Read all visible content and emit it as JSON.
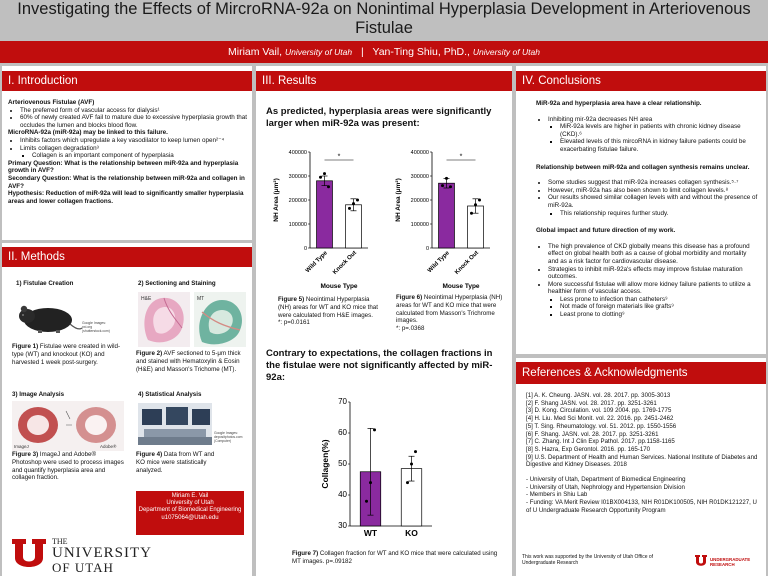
{
  "poster": {
    "title": "Investigating the Effects of MircroRNA-92a on Nonintimal Hyperplasia Development in Arteriovenous Fistulae",
    "author1": "Miriam Vail,",
    "author1_affil": "University of Utah",
    "separator": "|",
    "author2": "Yan-Ting Shiu, PhD.,",
    "author2_affil": "University of Utah"
  },
  "intro": {
    "heading": "I. Introduction",
    "avf_title": "Arteriovenous Fistulae (AVF)",
    "avf_bullets": [
      "The preferred form of vascular access for dialysis¹",
      "60% of newly created AVF fail to mature due to excessive hyperplasia growth that occludes the lumen and blocks blood flow."
    ],
    "mir_title": "MicroRNA-92a (miR-92a) may be linked to this failure.",
    "mir_bullets": [
      "Inhibits factors which upregulate a key vasodilator to keep lumen open²⁻⁴",
      "Limits collagen degradation³"
    ],
    "mir_sub": "Collagen is an important component of hyperplasia",
    "primary": "Primary Question: What is the relationship between miR-92a and hyperplasia growth in AVF?",
    "secondary": "Secondary Question: What is the relationship between miR-92a and collagen in AVF?",
    "hypothesis": "Hypothesis: Reduction of miR-92a will lead to significantly smaller hyperplasia areas and lower collagen fractions."
  },
  "methods": {
    "heading": "II. Methods",
    "sub1": "1) Fistulae Creation",
    "sub2": "2) Sectioning and Staining",
    "sub3": "3) Image Analysis",
    "sub4": "4) Statistical Analysis",
    "fig1_label": "Figure 1)",
    "fig1_text": "Fistulae were created in wild-type (WT) and knockout (KO) and harvested 1 week post-surgery.",
    "fig2_label": "Figure 2)",
    "fig2_text": "AVF sectioned to 5-μm thick and stained with Hematoxylin & Eosin (H&E) and Masson's Trichome (MT).",
    "fig3_label": "Figure 3)",
    "fig3_text": "ImageJ and Adobe® Photoshop were used to process images and quantify hyperplasia area and collagen fraction.",
    "fig4_label": "Figure 4)",
    "fig4_text": "Data from WT and KO mice were statistically analyzed.",
    "tag_he": "H&E",
    "tag_mt": "MT",
    "tag_imagej": "ImageJ",
    "tag_adobe": "Adobe®",
    "credit_mouse": "Google Images: pxi.org (shutterstock.com)",
    "credit_computer": "Google Images: depositphotos.com (Computer)",
    "contact": [
      "Miriam E. Vail",
      "University of Utah",
      "Department of Biomedical Engineering",
      "u1075064@Utah.edu"
    ],
    "logo_the": "THE",
    "logo_university": "UNIVERSITY",
    "logo_of_utah": "OF UTAH"
  },
  "results": {
    "heading": "III. Results",
    "headline1": "As predicted, hyperplasia areas were significantly larger when miR-92a was present:",
    "headline2": "Contrary to expectations, the collagen fractions in the fistulae were not significantly affected by miR-92a:",
    "fig5_label": "Figure 5)",
    "fig5_text": "Neointimal Hyperplasia (NH) areas for WT and KO mice that were calculated from H&E images.",
    "fig5_p": "*: p=0.0161",
    "fig6_label": "Figure 6)",
    "fig6_text": "Neointimal Hyperplasia (NH) areas for WT and KO mice that were calculated from Masson's Trichrome images.",
    "fig6_p": "*: p=.0368",
    "fig7_label": "Figure 7)",
    "fig7_text": "Collagen fraction for WT and KO mice that were calculated using MT images. p=.09182"
  },
  "conclusions": {
    "heading": "IV. Conclusions",
    "h1": "MiR-92a and hyperplasia area have a clear relationship.",
    "b1": "Inhibiting mir-92a decreases NH area",
    "b1_sub": [
      "MiR-92a levels are higher in patients with chronic kidney disease (CKD).⁶",
      "Elevated levels of this mircoRNA in kidney failure patients could be exacerbating fistulae failure."
    ],
    "h2": "Relationship between miR-92a and collagen synthesis remains unclear.",
    "b2": [
      "Some studies suggest that miR-92a increases collagen synthesis.⁵·⁷",
      "However, miR-92a has also been shown to limit collagen levels.⁸",
      "Our results showed similar collagen levels with and without the presence of miR-92a."
    ],
    "b2_sub": "This relationship requires further study.",
    "h3": "Global impact and future direction of my work.",
    "b3": [
      "The high prevalence of CKD globally means this disease has a profound effect on global health both as a cause of global morbidity and mortality and as a risk factor for cardiovascular disease.",
      "Strategies to inhibit miR-92a's effects may improve fistulae maturation outcomes.",
      "More successful fistulae will allow more kidney failure patients to utilize a healthier form of vascular access."
    ],
    "b3_sub": [
      "Less prone to infection than catheters⁹",
      "Not made of foreign materials like grafts⁹",
      "Least prone to clotting⁹"
    ]
  },
  "references": {
    "heading": "References & Acknowledgments",
    "items": [
      "[1] A. K. Cheung. JASN. vol. 28. 2017. pp. 3005-3013",
      "[2] F. Shang JASN. vol. 28. 2017. pp. 3251-3261",
      "[3] D. Kong. Circulation. vol. 109 2004. pp. 1769-1775",
      "[4] H. Liu. Med Sci Monit. vol. 22. 2016. pp. 2451-2462",
      "[5] T. Sing. Rheumatology. vol. 51. 2012. pp. 1550-1556",
      "[6] F. Shang. JASN. vol. 28. 2017. pp. 3251-3261",
      "[7] C. Zhang. Int J Clin Exp Pathol. 2017. pp.1158-1165",
      "[8] S. Hazra, Exp Gerontol. 2016. pp. 165-170",
      "[9] U.S. Department of Health and Human Services. National Institute of Diabetes and Digestive and Kidney Diseases. 2018"
    ],
    "acks": [
      "- University of Utah, Department of Biomedical Engineering",
      "- University of Utah, Nephrology and Hypertension Division",
      "- Members in Shiu Lab",
      "- Funding: VA Merit Review I01BX004133, NIH R01DK100505, NIH R01DK121227, U of U Undergraduate Research Opportunity Program"
    ],
    "support": "This work was supported by the University of Utah Office of Undergraduate Research",
    "logo_text": "UNDERGRADUATE RESEARCH"
  },
  "chart_data": [
    {
      "type": "bar",
      "ylabel": "NH Area (μm²)",
      "xlabel": "Mouse Type",
      "categories": [
        "Wild Type",
        "Knock Out"
      ],
      "values": [
        280000,
        180000
      ],
      "errors": [
        20000,
        25000
      ],
      "points": [
        [
          295000,
          310000,
          255000
        ],
        [
          165000,
          185000,
          200000
        ]
      ],
      "ylim": [
        0,
        400000
      ],
      "yticks": [
        0,
        100000,
        200000,
        300000,
        400000
      ],
      "significance": "*",
      "colors": [
        "#8a2a9f",
        "#ffffff"
      ]
    },
    {
      "type": "bar",
      "ylabel": "NH Area (μm²)",
      "xlabel": "Mouse Type",
      "categories": [
        "Wild Type",
        "Knock Out"
      ],
      "values": [
        270000,
        175000
      ],
      "errors": [
        20000,
        30000
      ],
      "points": [
        [
          260000,
          290000,
          255000
        ],
        [
          145000,
          180000,
          200000
        ]
      ],
      "ylim": [
        0,
        400000
      ],
      "yticks": [
        0,
        100000,
        200000,
        300000,
        400000
      ],
      "significance": "*",
      "colors": [
        "#8a2a9f",
        "#ffffff"
      ]
    },
    {
      "type": "bar",
      "ylabel": "Collagen(%)",
      "categories": [
        "WT",
        "KO"
      ],
      "values": [
        47.5,
        48.5
      ],
      "errors": [
        14,
        4
      ],
      "points": [
        [
          38,
          44,
          61
        ],
        [
          44,
          50,
          54
        ]
      ],
      "ylim": [
        30,
        70
      ],
      "yticks": [
        30,
        40,
        50,
        60,
        70
      ],
      "colors": [
        "#8a2a9f",
        "#ffffff"
      ]
    }
  ],
  "colors": {
    "accent": "#c00d0d",
    "bar_wt": "#8a2a9f",
    "background": "#bfbfbf"
  }
}
